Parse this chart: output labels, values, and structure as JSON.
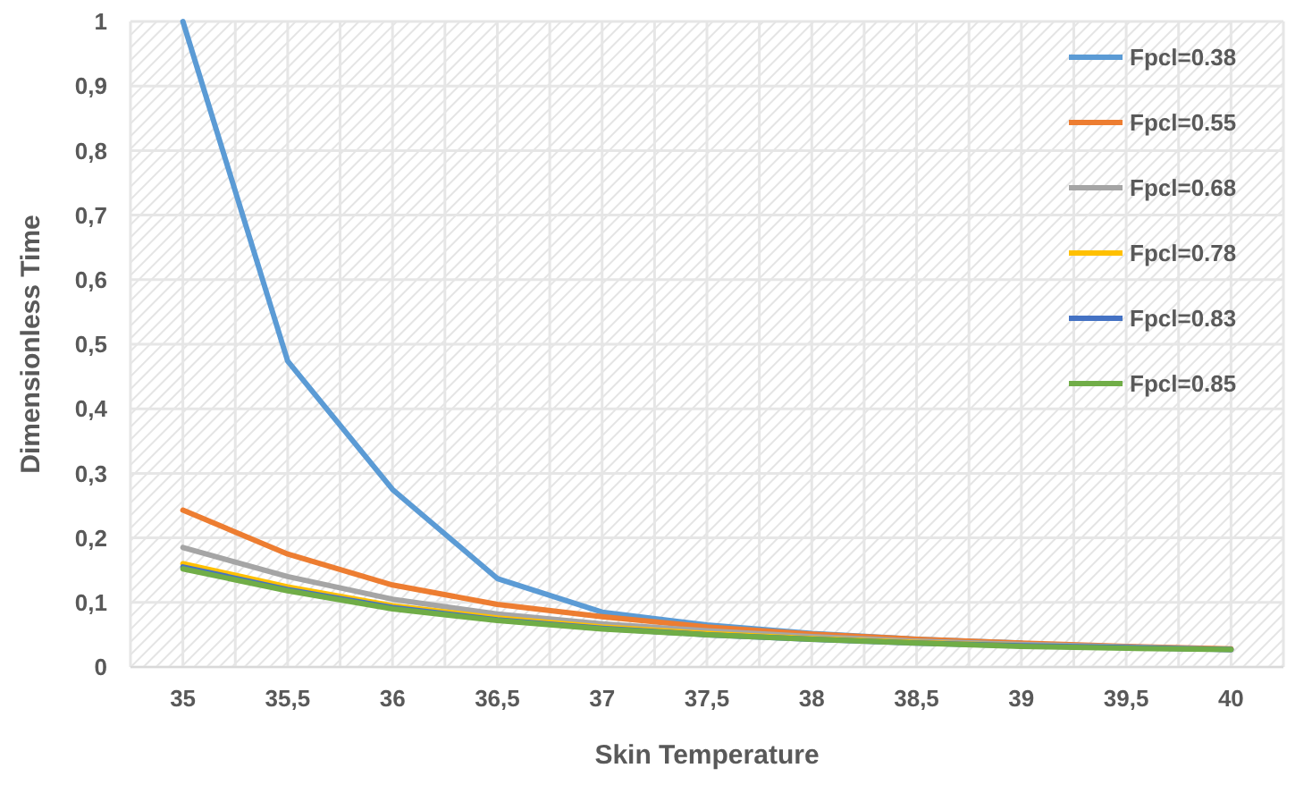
{
  "chart_data": {
    "type": "line",
    "xlabel": "Skin Temperature",
    "ylabel": "Dimensionless Time",
    "categories": [
      "35",
      "35,5",
      "36",
      "36,5",
      "37",
      "37,5",
      "38",
      "38,5",
      "39",
      "39,5",
      "40"
    ],
    "ylim": [
      0,
      1
    ],
    "yticks": [
      0,
      {
        "value": 0.1,
        "label": "0,1"
      },
      {
        "value": 0.2,
        "label": "0,2"
      },
      {
        "value": 0.3,
        "label": "0,3"
      },
      {
        "value": 0.4,
        "label": "0,4"
      },
      {
        "value": 0.5,
        "label": "0,5"
      },
      {
        "value": 0.6,
        "label": "0,6"
      },
      {
        "value": 0.7,
        "label": "0,7"
      },
      {
        "value": 0.8,
        "label": "0,8"
      },
      {
        "value": 0.9,
        "label": "0,9"
      },
      1
    ],
    "grid": true,
    "legend": "top right",
    "marker": "none",
    "line_style": "solid",
    "series": [
      {
        "name": "Fpcl=0.38",
        "color": "#5b9bd5",
        "values": [
          1,
          0.474,
          0.275,
          0.137,
          0.085,
          0.065,
          0.052,
          0.043,
          0.037,
          null,
          null
        ]
      },
      {
        "name": "Fpcl=0.55",
        "color": "#ed7d31",
        "values": [
          0.243,
          0.175,
          0.127,
          0.097,
          0.078,
          0.062,
          0.051,
          0.043,
          0.037,
          0.032,
          0.028
        ]
      },
      {
        "name": "Fpcl=0.68",
        "color": "#a5a5a5",
        "values": [
          0.185,
          0.14,
          0.105,
          0.082,
          0.067,
          0.056,
          0.047,
          0.04,
          0.035,
          0.031,
          0.027
        ]
      },
      {
        "name": "Fpcl=0.78",
        "color": "#ffc000",
        "values": [
          0.16,
          0.124,
          0.095,
          0.076,
          0.062,
          0.052,
          0.044,
          0.038,
          0.033,
          null,
          null
        ]
      },
      {
        "name": "Fpcl=0.83",
        "color": "#4472c4",
        "values": [
          0.155,
          0.12,
          0.092,
          0.073,
          0.06,
          0.05,
          0.043,
          0.037,
          0.033,
          0.03,
          0.027
        ]
      },
      {
        "name": "Fpcl=0.85",
        "color": "#70ad47",
        "values": [
          0.152,
          0.118,
          0.09,
          0.072,
          0.059,
          0.05,
          0.043,
          0.037,
          0.032,
          0.029,
          0.027
        ]
      }
    ]
  }
}
